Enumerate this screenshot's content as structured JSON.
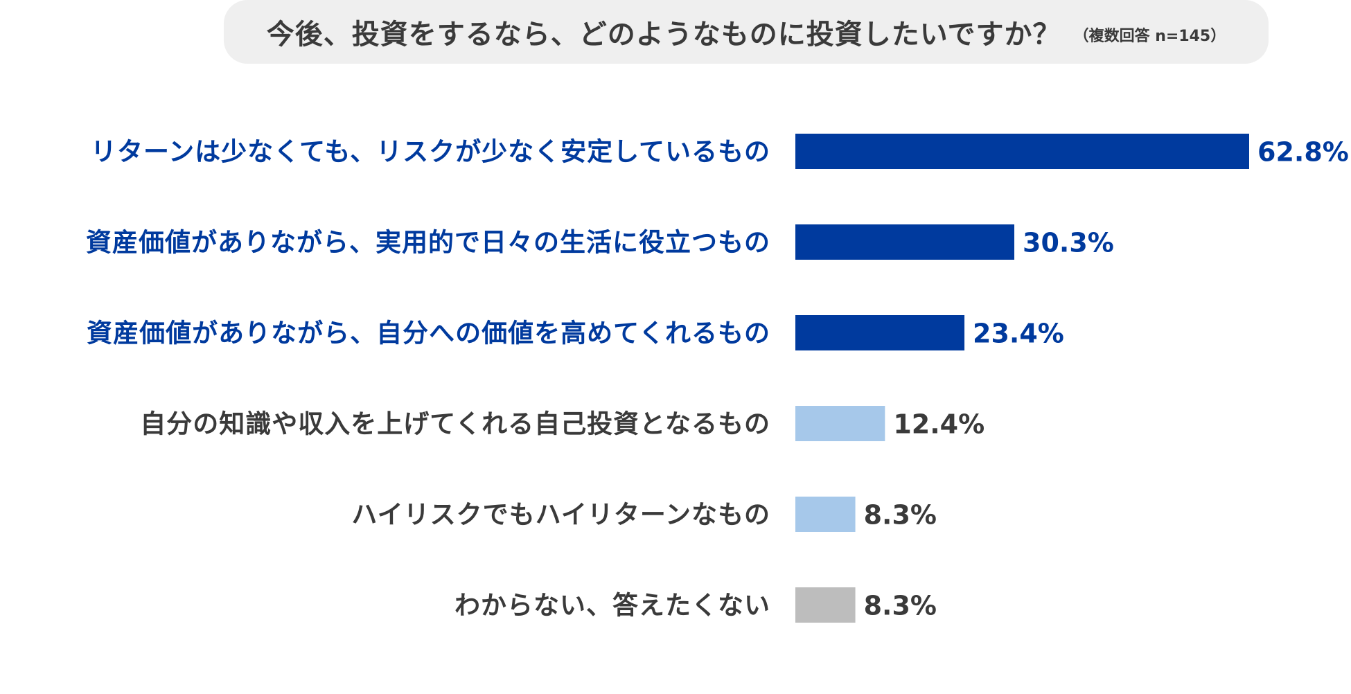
{
  "chart_data": {
    "type": "bar",
    "orientation": "horizontal",
    "title": "今後、投資をするなら、どのようなものに投資したいですか？",
    "subtitle": "（複数回答 n=145）",
    "categories": [
      "リターンは少なくても、リスクが少なく安定しているもの",
      "資産価値がありながら、実用的で日々の生活に役立つもの",
      "資産価値がありながら、自分への価値を高めてくれるもの",
      "自分の知識や収入を上げてくれる自己投資となるもの",
      "ハイリスクでもハイリターンなもの",
      "わからない、答えたくない"
    ],
    "values": [
      62.8,
      30.3,
      23.4,
      12.4,
      8.3,
      8.3
    ],
    "value_labels": [
      "62.8%",
      "30.3%",
      "23.4%",
      "12.4%",
      "8.3%",
      "8.3%"
    ],
    "xlim": [
      0,
      62.8
    ],
    "grid": false,
    "legend": "none",
    "colors": {
      "highlight": "#003a9e",
      "light": "#a6c8ea",
      "neutral": "#bdbdbd",
      "highlight_text": "#003a9e",
      "normal_text": "#3a3a3a"
    },
    "bar_color_keys": [
      "highlight",
      "highlight",
      "highlight",
      "light",
      "light",
      "neutral"
    ],
    "label_color_keys": [
      "highlight_text",
      "highlight_text",
      "highlight_text",
      "normal_text",
      "normal_text",
      "normal_text"
    ]
  }
}
